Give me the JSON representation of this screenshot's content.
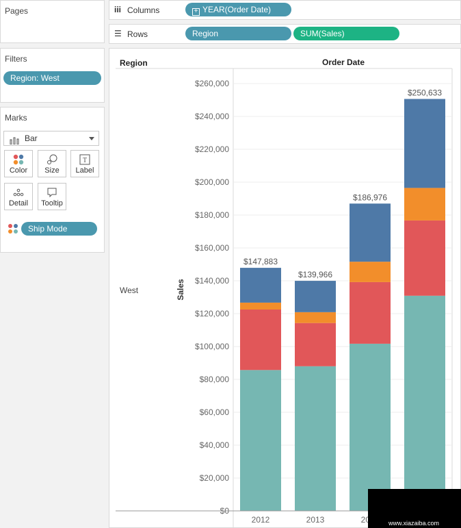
{
  "pages_card": {
    "title": "Pages"
  },
  "filters_card": {
    "title": "Filters",
    "filter_pill": "Region: West"
  },
  "marks_card": {
    "title": "Marks",
    "mark_type": "Bar",
    "buttons": {
      "color": "Color",
      "size": "Size",
      "label": "Label",
      "detail": "Detail",
      "tooltip": "Tooltip"
    },
    "color_pill": "Ship Mode",
    "dot_colors": [
      "#e15759",
      "#4e79a7",
      "#f28e2b",
      "#76b7b2"
    ]
  },
  "shelves": {
    "columns_label": "Columns",
    "columns_pill": "YEAR(Order Date)",
    "rows_label": "Rows",
    "rows_pill_1": "Region",
    "rows_pill_2": "SUM(Sales)"
  },
  "view": {
    "row_header_title": "Region",
    "column_header_title": "Order Date",
    "row_value": "West"
  },
  "watermark": {
    "text": "www.xiazaiba.com"
  },
  "chart_data": {
    "type": "bar",
    "stacked": true,
    "categories": [
      "2012",
      "2013",
      "2014",
      "2015"
    ],
    "ylabel": "Sales",
    "ylim": [
      0,
      265000
    ],
    "yticks": [
      0,
      20000,
      40000,
      60000,
      80000,
      100000,
      120000,
      140000,
      160000,
      180000,
      200000,
      220000,
      240000,
      260000
    ],
    "ytick_labels": [
      "$0",
      "$20,000",
      "$40,000",
      "$60,000",
      "$80,000",
      "$100,000",
      "$120,000",
      "$140,000",
      "$160,000",
      "$180,000",
      "$200,000",
      "$220,000",
      "$240,000",
      "$260,000"
    ],
    "totals": [
      147883,
      139966,
      186976,
      250633
    ],
    "total_labels": [
      "$147,883",
      "$139,966",
      "$186,976",
      "$250,633"
    ],
    "grid": true,
    "series": [
      {
        "values": [
          85700,
          88000,
          101700,
          130900
        ],
        "color": "#76b7b2"
      },
      {
        "values": [
          36800,
          26300,
          37500,
          45800
        ],
        "color": "#e15759"
      },
      {
        "values": [
          4200,
          6600,
          12400,
          19800
        ],
        "color": "#f28e2b"
      },
      {
        "values": [
          21183,
          19066,
          35376,
          54133
        ],
        "color": "#4e79a7"
      }
    ]
  }
}
